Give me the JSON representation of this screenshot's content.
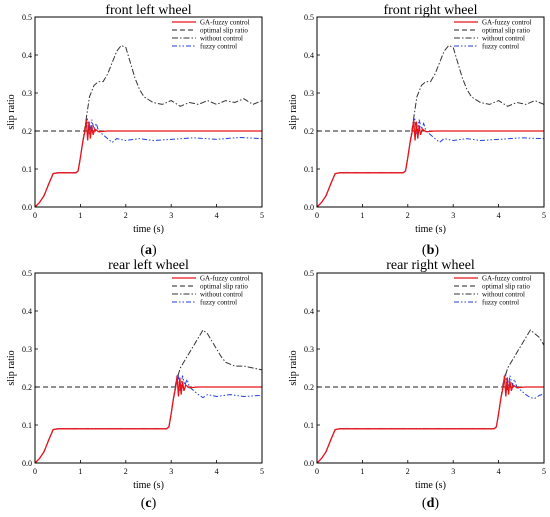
{
  "colors": {
    "ga_fuzzy": "#e8141b",
    "optimal": "#222222",
    "without": "#333333",
    "fuzzy": "#1f3fe0",
    "axis": "#000000"
  },
  "legend": [
    {
      "key": "ga_fuzzy",
      "label": "GA-fuzzy control",
      "dash": "solid"
    },
    {
      "key": "optimal",
      "label": "optimal slip ratio",
      "dash": "dashed"
    },
    {
      "key": "without",
      "label": "without control",
      "dash": "dashdot"
    },
    {
      "key": "fuzzy",
      "label": "fuzzy control",
      "dash": "dashdotdot"
    }
  ],
  "chart_data": [
    {
      "type": "line",
      "title": "front left wheel",
      "panel_letter": "a",
      "xlabel": "time (s)",
      "ylabel": "slip ratio",
      "xlim": [
        0,
        5
      ],
      "ylim": [
        0,
        0.5
      ],
      "xticks": [
        "0",
        "1",
        "2",
        "3",
        "4",
        "5"
      ],
      "yticks": [
        "0.0",
        "0.1",
        "0.2",
        "0.3",
        "0.4",
        "0.5"
      ],
      "grid": false,
      "legend_position": "top-right",
      "series": [
        {
          "name": "GA-fuzzy control",
          "key": "ga_fuzzy",
          "x": [
            0,
            0.1,
            0.2,
            0.3,
            0.4,
            0.5,
            0.9,
            0.95,
            1.0,
            1.05,
            1.1,
            1.13,
            1.16,
            1.19,
            1.22,
            1.25,
            1.28,
            1.32,
            1.4,
            1.6,
            2.0,
            3.0,
            4.0,
            5.0
          ],
          "y": [
            0,
            0.012,
            0.03,
            0.06,
            0.088,
            0.09,
            0.09,
            0.095,
            0.13,
            0.17,
            0.2,
            0.23,
            0.175,
            0.225,
            0.18,
            0.215,
            0.19,
            0.205,
            0.198,
            0.2,
            0.2,
            0.2,
            0.2,
            0.2
          ]
        },
        {
          "name": "optimal slip ratio",
          "key": "optimal",
          "x": [
            0,
            5
          ],
          "y": [
            0.2,
            0.2
          ]
        },
        {
          "name": "without control",
          "key": "without",
          "x": [
            0,
            0.1,
            0.2,
            0.3,
            0.4,
            0.5,
            0.9,
            0.95,
            1.0,
            1.05,
            1.1,
            1.15,
            1.2,
            1.3,
            1.4,
            1.5,
            1.6,
            1.7,
            1.8,
            1.9,
            2.0,
            2.1,
            2.2,
            2.3,
            2.4,
            2.6,
            2.8,
            3.0,
            3.2,
            3.4,
            3.6,
            3.8,
            4.0,
            4.2,
            4.4,
            4.6,
            4.8,
            5.0
          ],
          "y": [
            0,
            0.012,
            0.03,
            0.06,
            0.088,
            0.09,
            0.09,
            0.095,
            0.13,
            0.17,
            0.21,
            0.25,
            0.29,
            0.32,
            0.33,
            0.33,
            0.35,
            0.38,
            0.41,
            0.425,
            0.42,
            0.38,
            0.34,
            0.31,
            0.29,
            0.275,
            0.27,
            0.28,
            0.265,
            0.275,
            0.27,
            0.28,
            0.27,
            0.28,
            0.275,
            0.285,
            0.27,
            0.28
          ]
        },
        {
          "name": "fuzzy control",
          "key": "fuzzy",
          "x": [
            0,
            0.1,
            0.2,
            0.3,
            0.4,
            0.5,
            0.9,
            0.95,
            1.0,
            1.05,
            1.1,
            1.15,
            1.2,
            1.25,
            1.3,
            1.35,
            1.4,
            1.5,
            1.6,
            1.7,
            1.8,
            2.0,
            2.3,
            2.6,
            3.0,
            3.5,
            4.0,
            4.5,
            5.0
          ],
          "y": [
            0,
            0.012,
            0.03,
            0.06,
            0.088,
            0.09,
            0.09,
            0.095,
            0.13,
            0.17,
            0.2,
            0.235,
            0.19,
            0.23,
            0.205,
            0.22,
            0.2,
            0.19,
            0.18,
            0.17,
            0.18,
            0.175,
            0.18,
            0.175,
            0.178,
            0.182,
            0.178,
            0.183,
            0.18
          ]
        }
      ]
    },
    {
      "type": "line",
      "title": "front right wheel",
      "panel_letter": "b",
      "xlabel": "time (s)",
      "ylabel": "slip ratio",
      "xlim": [
        0,
        5
      ],
      "ylim": [
        0,
        0.5
      ],
      "xticks": [
        "0",
        "1",
        "2",
        "3",
        "4",
        "5"
      ],
      "yticks": [
        "0.0",
        "0.1",
        "0.2",
        "0.3",
        "0.4",
        "0.5"
      ],
      "grid": false,
      "legend_position": "top-right",
      "series": [
        {
          "name": "GA-fuzzy control",
          "key": "ga_fuzzy",
          "x": [
            0,
            0.1,
            0.2,
            0.3,
            0.4,
            0.5,
            1.9,
            1.95,
            2.0,
            2.05,
            2.1,
            2.13,
            2.16,
            2.19,
            2.22,
            2.25,
            2.28,
            2.32,
            2.4,
            2.6,
            3.0,
            4.0,
            5.0
          ],
          "y": [
            0,
            0.012,
            0.03,
            0.06,
            0.088,
            0.09,
            0.09,
            0.095,
            0.13,
            0.17,
            0.2,
            0.23,
            0.175,
            0.225,
            0.18,
            0.215,
            0.19,
            0.205,
            0.198,
            0.2,
            0.2,
            0.2,
            0.2
          ]
        },
        {
          "name": "optimal slip ratio",
          "key": "optimal",
          "x": [
            0,
            5
          ],
          "y": [
            0.2,
            0.2
          ]
        },
        {
          "name": "without control",
          "key": "without",
          "x": [
            0,
            0.1,
            0.2,
            0.3,
            0.4,
            0.5,
            1.9,
            1.95,
            2.0,
            2.05,
            2.1,
            2.15,
            2.2,
            2.3,
            2.4,
            2.5,
            2.6,
            2.7,
            2.8,
            2.9,
            3.0,
            3.1,
            3.2,
            3.3,
            3.4,
            3.6,
            3.8,
            4.0,
            4.2,
            4.4,
            4.6,
            4.8,
            5.0
          ],
          "y": [
            0,
            0.012,
            0.03,
            0.06,
            0.088,
            0.09,
            0.09,
            0.095,
            0.13,
            0.17,
            0.21,
            0.25,
            0.29,
            0.32,
            0.33,
            0.33,
            0.35,
            0.38,
            0.41,
            0.425,
            0.42,
            0.38,
            0.34,
            0.31,
            0.29,
            0.275,
            0.27,
            0.28,
            0.265,
            0.275,
            0.27,
            0.28,
            0.27
          ]
        },
        {
          "name": "fuzzy control",
          "key": "fuzzy",
          "x": [
            0,
            0.1,
            0.2,
            0.3,
            0.4,
            0.5,
            1.9,
            1.95,
            2.0,
            2.05,
            2.1,
            2.15,
            2.2,
            2.25,
            2.3,
            2.35,
            2.4,
            2.5,
            2.6,
            2.7,
            2.8,
            3.0,
            3.3,
            3.6,
            4.0,
            4.5,
            5.0
          ],
          "y": [
            0,
            0.012,
            0.03,
            0.06,
            0.088,
            0.09,
            0.09,
            0.095,
            0.13,
            0.17,
            0.2,
            0.235,
            0.19,
            0.23,
            0.205,
            0.22,
            0.2,
            0.19,
            0.18,
            0.17,
            0.18,
            0.175,
            0.18,
            0.175,
            0.178,
            0.182,
            0.18
          ]
        }
      ]
    },
    {
      "type": "line",
      "title": "rear left wheel",
      "panel_letter": "c",
      "xlabel": "time (s)",
      "ylabel": "slip ratio",
      "xlim": [
        0,
        5
      ],
      "ylim": [
        0,
        0.5
      ],
      "xticks": [
        "0",
        "1",
        "2",
        "3",
        "4",
        "5"
      ],
      "yticks": [
        "0.0",
        "0.1",
        "0.2",
        "0.3",
        "0.4",
        "0.5"
      ],
      "grid": false,
      "legend_position": "top-right",
      "series": [
        {
          "name": "GA-fuzzy control",
          "key": "ga_fuzzy",
          "x": [
            0,
            0.1,
            0.2,
            0.3,
            0.4,
            0.5,
            2.9,
            2.95,
            3.0,
            3.05,
            3.1,
            3.13,
            3.16,
            3.19,
            3.22,
            3.25,
            3.28,
            3.32,
            3.4,
            3.6,
            4.0,
            5.0
          ],
          "y": [
            0,
            0.012,
            0.03,
            0.06,
            0.088,
            0.09,
            0.09,
            0.095,
            0.13,
            0.17,
            0.2,
            0.23,
            0.175,
            0.225,
            0.18,
            0.215,
            0.19,
            0.205,
            0.198,
            0.2,
            0.2,
            0.2
          ]
        },
        {
          "name": "optimal slip ratio",
          "key": "optimal",
          "x": [
            0,
            5
          ],
          "y": [
            0.2,
            0.2
          ]
        },
        {
          "name": "without control",
          "key": "without",
          "x": [
            0,
            0.1,
            0.2,
            0.3,
            0.4,
            0.5,
            2.9,
            2.95,
            3.0,
            3.05,
            3.1,
            3.15,
            3.2,
            3.3,
            3.4,
            3.5,
            3.6,
            3.7,
            3.8,
            3.9,
            4.0,
            4.1,
            4.2,
            4.3,
            4.4,
            4.6,
            4.8,
            5.0
          ],
          "y": [
            0,
            0.012,
            0.03,
            0.06,
            0.088,
            0.09,
            0.09,
            0.095,
            0.13,
            0.17,
            0.21,
            0.23,
            0.25,
            0.27,
            0.29,
            0.31,
            0.33,
            0.35,
            0.34,
            0.32,
            0.3,
            0.28,
            0.265,
            0.26,
            0.255,
            0.255,
            0.25,
            0.245
          ]
        },
        {
          "name": "fuzzy control",
          "key": "fuzzy",
          "x": [
            0,
            0.1,
            0.2,
            0.3,
            0.4,
            0.5,
            2.9,
            2.95,
            3.0,
            3.05,
            3.1,
            3.15,
            3.2,
            3.25,
            3.3,
            3.35,
            3.4,
            3.5,
            3.6,
            3.7,
            3.8,
            4.0,
            4.3,
            4.6,
            5.0
          ],
          "y": [
            0,
            0.012,
            0.03,
            0.06,
            0.088,
            0.09,
            0.09,
            0.095,
            0.13,
            0.17,
            0.2,
            0.235,
            0.19,
            0.23,
            0.205,
            0.22,
            0.2,
            0.19,
            0.18,
            0.172,
            0.18,
            0.175,
            0.18,
            0.175,
            0.178
          ]
        }
      ]
    },
    {
      "type": "line",
      "title": "rear right wheel",
      "panel_letter": "d",
      "xlabel": "time (s)",
      "ylabel": "slip ratio",
      "xlim": [
        0,
        5
      ],
      "ylim": [
        0,
        0.5
      ],
      "xticks": [
        "0",
        "1",
        "2",
        "3",
        "4",
        "5"
      ],
      "yticks": [
        "0.0",
        "0.1",
        "0.2",
        "0.3",
        "0.4",
        "0.5"
      ],
      "grid": false,
      "legend_position": "top-right",
      "series": [
        {
          "name": "GA-fuzzy control",
          "key": "ga_fuzzy",
          "x": [
            0,
            0.1,
            0.2,
            0.3,
            0.4,
            0.5,
            3.9,
            3.95,
            4.0,
            4.05,
            4.1,
            4.13,
            4.16,
            4.19,
            4.22,
            4.25,
            4.28,
            4.32,
            4.4,
            4.6,
            5.0
          ],
          "y": [
            0,
            0.012,
            0.03,
            0.06,
            0.088,
            0.09,
            0.09,
            0.095,
            0.13,
            0.17,
            0.2,
            0.23,
            0.175,
            0.225,
            0.18,
            0.215,
            0.19,
            0.205,
            0.198,
            0.2,
            0.2
          ]
        },
        {
          "name": "optimal slip ratio",
          "key": "optimal",
          "x": [
            0,
            5
          ],
          "y": [
            0.2,
            0.2
          ]
        },
        {
          "name": "without control",
          "key": "without",
          "x": [
            0,
            0.1,
            0.2,
            0.3,
            0.4,
            0.5,
            3.9,
            3.95,
            4.0,
            4.05,
            4.1,
            4.15,
            4.2,
            4.3,
            4.4,
            4.5,
            4.6,
            4.7,
            4.8,
            4.9,
            5.0
          ],
          "y": [
            0,
            0.012,
            0.03,
            0.06,
            0.088,
            0.09,
            0.09,
            0.095,
            0.13,
            0.17,
            0.21,
            0.23,
            0.25,
            0.27,
            0.29,
            0.31,
            0.33,
            0.35,
            0.34,
            0.33,
            0.31
          ]
        },
        {
          "name": "fuzzy control",
          "key": "fuzzy",
          "x": [
            0,
            0.1,
            0.2,
            0.3,
            0.4,
            0.5,
            3.9,
            3.95,
            4.0,
            4.05,
            4.1,
            4.15,
            4.2,
            4.25,
            4.3,
            4.35,
            4.4,
            4.5,
            4.6,
            4.7,
            4.8,
            4.9,
            5.0
          ],
          "y": [
            0,
            0.012,
            0.03,
            0.06,
            0.088,
            0.09,
            0.09,
            0.095,
            0.13,
            0.17,
            0.2,
            0.235,
            0.19,
            0.23,
            0.205,
            0.22,
            0.2,
            0.19,
            0.18,
            0.172,
            0.17,
            0.178,
            0.182
          ]
        }
      ]
    }
  ]
}
